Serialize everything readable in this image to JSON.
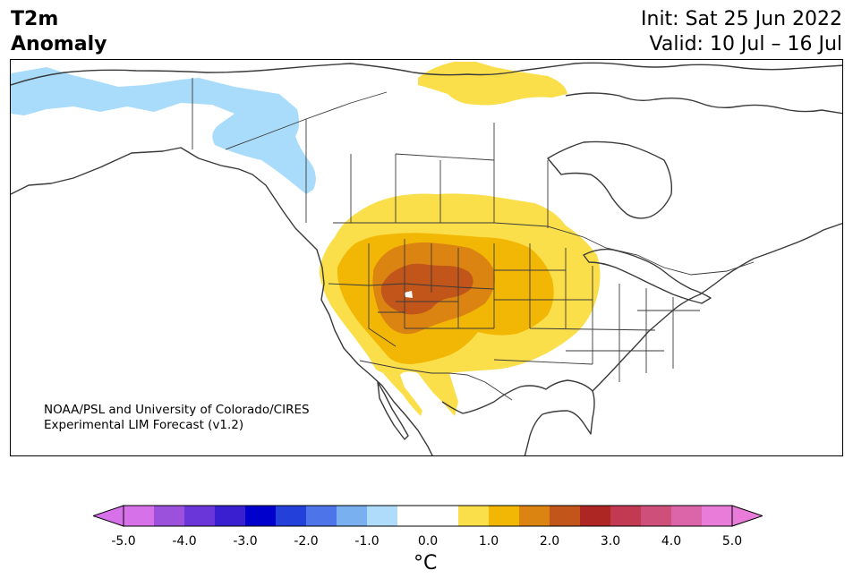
{
  "header": {
    "title_line1": "T2m",
    "title_line2": "Anomaly",
    "init_text": "Init: Sat 25 Jun 2022",
    "valid_text": "Valid: 10 Jul – 16 Jul"
  },
  "map": {
    "region": "North America",
    "credit_line1": "NOAA/PSL and University of Colorado/CIRES",
    "credit_line2": "Experimental LIM Forecast (v1.2)",
    "anomaly_regions": [
      {
        "area": "Alaska / northwestern Canada",
        "color": "#a8dcfa"
      },
      {
        "area": "Arctic Canada (Victoria Island area)",
        "color": "#fbdf4a"
      },
      {
        "area": "Western and central United States",
        "color": "#fbdf4a"
      },
      {
        "area": "Intermountain West and Great Plains",
        "color": "#f2b705"
      },
      {
        "area": "Great Basin / Colorado Plateau",
        "color": "#dc8412"
      },
      {
        "area": "Utah / Colorado / Wyoming",
        "color": "#c2551a"
      }
    ]
  },
  "colorbar": {
    "unit_label": "°C",
    "ticks": [
      "-5.0",
      "-4.0",
      "-3.0",
      "-2.0",
      "-1.0",
      "0.0",
      "1.0",
      "2.0",
      "3.0",
      "4.0",
      "5.0"
    ],
    "under_color": "#d771ea",
    "over_color": "#e97bd9",
    "colors": [
      "#d771ea",
      "#9b51dc",
      "#6b36d9",
      "#3a1fd1",
      "#0000cc",
      "#2440da",
      "#4d74e8",
      "#79b1f0",
      "#aedcfa",
      "#ffffff",
      "#ffffff",
      "#fbdf4a",
      "#f2b705",
      "#dc8412",
      "#c2551a",
      "#ad2623",
      "#c13a52",
      "#cf4f7b",
      "#dc64a9",
      "#e97bd9"
    ]
  }
}
